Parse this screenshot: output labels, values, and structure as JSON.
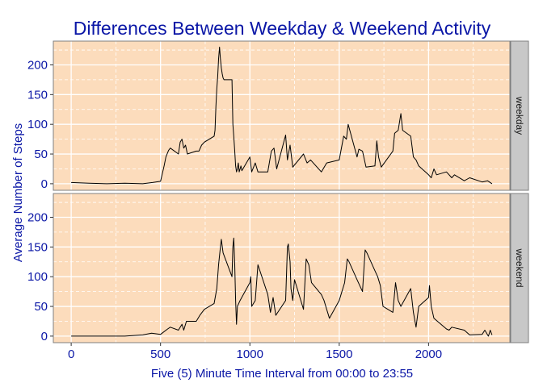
{
  "colors": {
    "panel_background": "#fcdcbc",
    "strip_background": "#c8c8c8",
    "grid": "#ffffff",
    "line": "#000000",
    "text": "#0a16a6"
  },
  "chart_data": {
    "type": "line",
    "title": "Differences Between Weekday & Weekend Activity",
    "xlabel": "Five (5) Minute Time Interval from 00:00 to 23:55",
    "ylabel": "Average Number of Steps",
    "xlim": [
      -100,
      2455
    ],
    "ylim": [
      -11,
      240
    ],
    "x_ticks": [
      0,
      500,
      1000,
      1500,
      2000
    ],
    "y_ticks": [
      0,
      50,
      100,
      150,
      200
    ],
    "grid": true,
    "facet_layout": "stacked vertically, strip labels on right",
    "panels": [
      {
        "label": "weekday",
        "series": [
          {
            "x": [
              0,
              100,
              200,
              300,
              400,
              455,
              500,
              520,
              530,
              545,
              555,
              600,
              610,
              620,
              630,
              640,
              650,
              700,
              715,
              730,
              745,
              800,
              805,
              810,
              815,
              820,
              825,
              830,
              835,
              840,
              845,
              850,
              855,
              900,
              905,
              910,
              915,
              920,
              925,
              930,
              935,
              940,
              945,
              950,
              955,
              1000,
              1010,
              1030,
              1045,
              1100,
              1120,
              1135,
              1150,
              1200,
              1210,
              1225,
              1240,
              1300,
              1320,
              1340,
              1400,
              1430,
              1500,
              1525,
              1540,
              1550,
              1600,
              1610,
              1630,
              1650,
              1700,
              1710,
              1720,
              1735,
              1800,
              1810,
              1830,
              1845,
              1855,
              1900,
              1915,
              1930,
              1945,
              2000,
              2015,
              2030,
              2045,
              2100,
              2130,
              2145,
              2200,
              2230,
              2300,
              2330,
              2355
            ],
            "y": [
              2,
              1,
              0,
              1,
              0,
              2,
              4,
              30,
              45,
              56,
              60,
              50,
              70,
              75,
              60,
              65,
              50,
              55,
              55,
              65,
              70,
              80,
              90,
              130,
              160,
              180,
              210,
              230,
              210,
              195,
              185,
              178,
              175,
              175,
              100,
              80,
              55,
              30,
              20,
              25,
              35,
              20,
              25,
              30,
              22,
              45,
              20,
              35,
              20,
              20,
              55,
              60,
              25,
              82,
              40,
              65,
              28,
              50,
              35,
              40,
              20,
              35,
              40,
              80,
              75,
              100,
              45,
              58,
              55,
              28,
              30,
              72,
              45,
              28,
              55,
              85,
              90,
              118,
              90,
              80,
              45,
              40,
              30,
              15,
              10,
              25,
              15,
              20,
              10,
              15,
              5,
              10,
              3,
              5,
              0
            ]
          }
        ]
      },
      {
        "label": "weekend",
        "series": [
          {
            "x": [
              0,
              100,
              200,
              300,
              400,
              450,
              500,
              540,
              555,
              600,
              620,
              630,
              645,
              700,
              720,
              745,
              800,
              815,
              825,
              835,
              840,
              850,
              900,
              905,
              910,
              915,
              920,
              925,
              930,
              945,
              1000,
              1005,
              1010,
              1030,
              1045,
              1100,
              1115,
              1130,
              1145,
              1200,
              1210,
              1215,
              1225,
              1230,
              1240,
              1250,
              1300,
              1315,
              1330,
              1345,
              1400,
              1415,
              1430,
              1445,
              1500,
              1530,
              1545,
              1555,
              1600,
              1615,
              1630,
              1645,
              1655,
              1700,
              1715,
              1730,
              1745,
              1800,
              1815,
              1830,
              1845,
              1900,
              1915,
              1930,
              1945,
              2000,
              2005,
              2015,
              2030,
              2100,
              2115,
              2130,
              2200,
              2230,
              2300,
              2315,
              2330,
              2335,
              2345,
              2355
            ],
            "y": [
              0,
              0,
              0,
              0,
              2,
              5,
              3,
              12,
              15,
              10,
              20,
              10,
              25,
              25,
              35,
              45,
              55,
              80,
              120,
              150,
              163,
              140,
              100,
              150,
              165,
              120,
              60,
              20,
              50,
              60,
              90,
              100,
              50,
              60,
              120,
              70,
              40,
              65,
              35,
              60,
              150,
              155,
              125,
              80,
              60,
              95,
              45,
              130,
              120,
              90,
              70,
              60,
              45,
              30,
              60,
              90,
              130,
              125,
              95,
              85,
              75,
              145,
              140,
              110,
              100,
              85,
              50,
              40,
              90,
              60,
              50,
              80,
              40,
              15,
              50,
              65,
              85,
              50,
              30,
              12,
              10,
              15,
              10,
              2,
              3,
              10,
              2,
              0,
              10,
              2
            ]
          }
        ]
      }
    ]
  }
}
